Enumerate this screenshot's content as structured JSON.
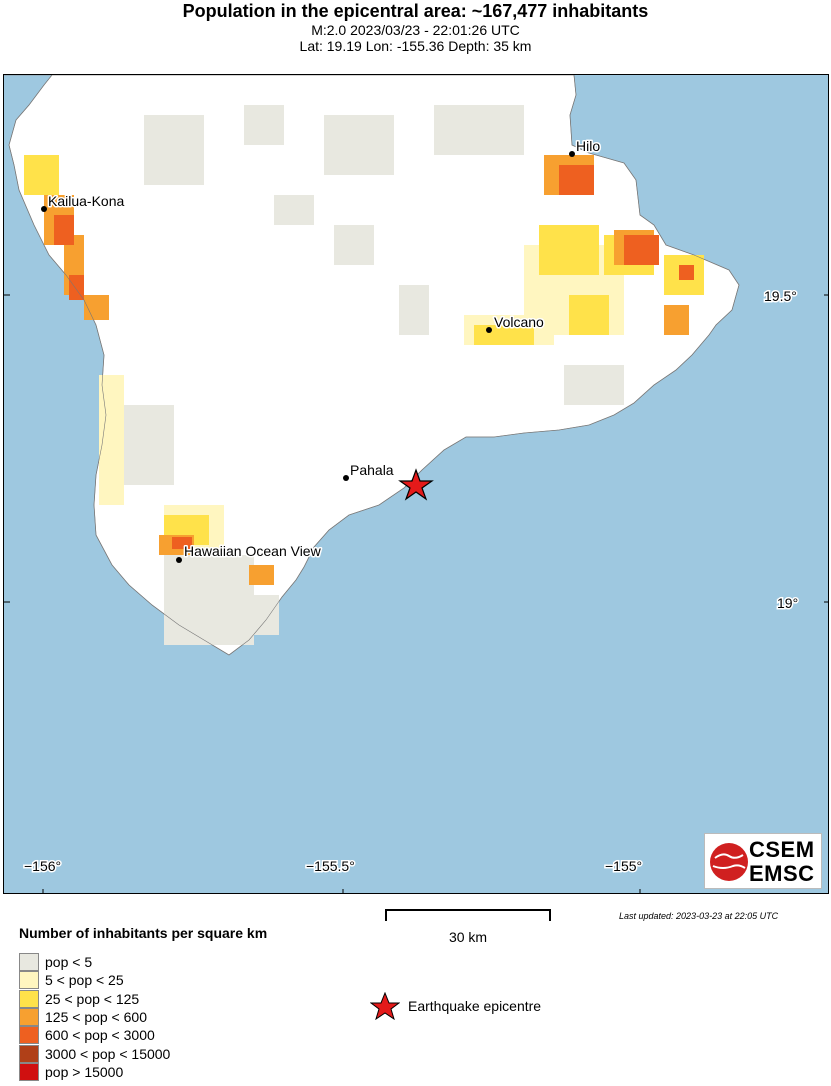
{
  "header": {
    "title": "Population in the epicentral area: ~167,477 inhabitants",
    "line1": "M:2.0 2023/03/23 - 22:01:26 UTC",
    "line2": "Lat: 19.19 Lon: -155.36 Depth: 35 km"
  },
  "map": {
    "cities": [
      {
        "name": "Hilo"
      },
      {
        "name": "Kailua-Kona"
      },
      {
        "name": "Volcano"
      },
      {
        "name": "Pahala"
      },
      {
        "name": "Hawaiian Ocean View"
      }
    ],
    "lon_ticks": [
      "−156°",
      "−155.5°",
      "−155°"
    ],
    "lat_ticks": [
      "19.5°",
      "19°"
    ],
    "epicenter": {
      "lat": 19.19,
      "lon": -155.36
    }
  },
  "logo": {
    "line1": "CSEM",
    "line2": "EMSC"
  },
  "updated": "Last updated: 2023-03-23 at 22:05 UTC",
  "scale": {
    "label": "30 km"
  },
  "legend": {
    "title": "Number of inhabitants per square km",
    "items": [
      {
        "label": "pop < 5",
        "color": "#e8e8e0"
      },
      {
        "label": "5 < pop < 25",
        "color": "#fff6c0"
      },
      {
        "label": "25 < pop < 125",
        "color": "#ffe24a"
      },
      {
        "label": "125 < pop < 600",
        "color": "#f7a030"
      },
      {
        "label": "600 < pop < 3000",
        "color": "#ee6020"
      },
      {
        "label": "3000 < pop < 15000",
        "color": "#b04018"
      },
      {
        "label": "pop > 15000",
        "color": "#d01010"
      }
    ],
    "epicentre_label": "Earthquake epicentre"
  },
  "colors": {
    "ocean": "#9ec8e0",
    "land": "#ffffff",
    "epicenter": "#e41a1a"
  }
}
